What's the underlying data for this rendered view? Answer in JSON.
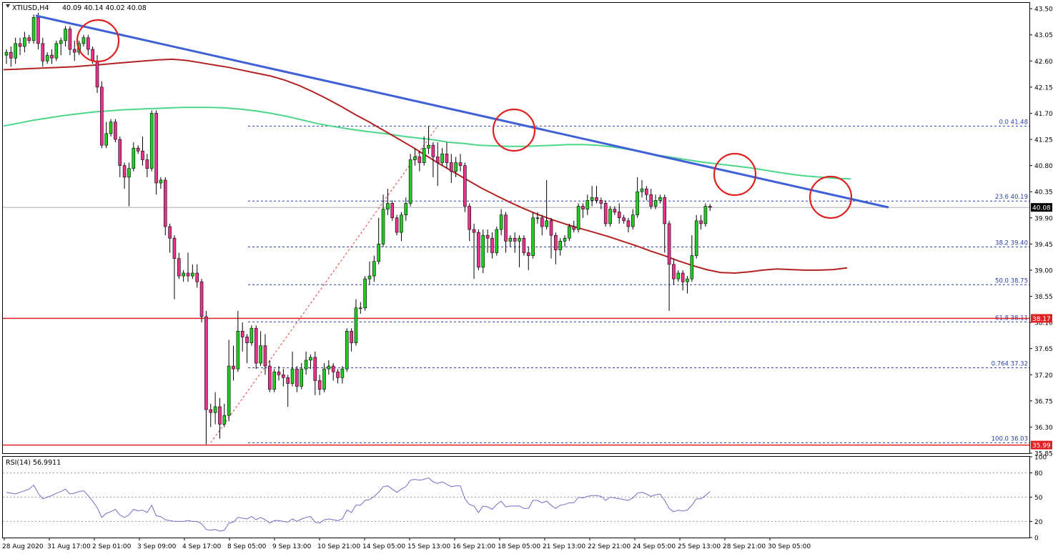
{
  "header": {
    "symbol": "XTIUSD,H4",
    "ohlc": "40.09 40.14 40.02 40.08"
  },
  "rsi_header": "RSI(14) 56.9911",
  "current_price_label": "40.08",
  "colors": {
    "bull": "#22cc22",
    "bear": "#e8338a",
    "sma_red": "#b22222",
    "sma_green": "#4cd68a",
    "trendline": "#4060d8",
    "horizontal": "#e02020",
    "circle": "#e02020",
    "fib": "#2a3fb0",
    "rsi_line": "#7b68c8"
  },
  "chart_data": {
    "type": "candlestick",
    "price_ylim": [
      35.85,
      43.6
    ],
    "y_ticks": [
      "43.50",
      "43.05",
      "42.60",
      "42.15",
      "41.70",
      "41.25",
      "40.80",
      "40.35",
      "39.90",
      "39.45",
      "39.00",
      "38.55",
      "38.10",
      "37.65",
      "37.20",
      "36.75",
      "36.30",
      "35.85"
    ],
    "x_ticks": [
      "28 Aug 2020",
      "31 Aug 17:00",
      "2 Sep 01:00",
      "3 Sep 09:00",
      "4 Sep 17:00",
      "8 Sep 05:00",
      "9 Sep 13:00",
      "10 Sep 21:00",
      "14 Sep 05:00",
      "15 Sep 13:00",
      "16 Sep 21:00",
      "18 Sep 05:00",
      "21 Sep 13:00",
      "22 Sep 21:00",
      "24 Sep 05:00",
      "25 Sep 13:00",
      "28 Sep 21:00",
      "30 Sep 05:00"
    ],
    "candles": [
      [
        42.7,
        42.75,
        42.55,
        42.8
      ],
      [
        42.75,
        42.65,
        42.5,
        42.85
      ],
      [
        42.65,
        42.9,
        42.55,
        43.0
      ],
      [
        42.9,
        42.85,
        42.7,
        43.0
      ],
      [
        42.85,
        43.0,
        42.75,
        43.1
      ],
      [
        43.0,
        42.95,
        42.9,
        43.05
      ],
      [
        42.95,
        43.35,
        42.9,
        43.4
      ],
      [
        43.35,
        42.9,
        42.8,
        43.45
      ],
      [
        42.9,
        42.6,
        42.5,
        43.0
      ],
      [
        42.6,
        42.7,
        42.55,
        42.75
      ],
      [
        42.7,
        42.65,
        42.55,
        42.8
      ],
      [
        42.65,
        42.9,
        42.6,
        42.95
      ],
      [
        42.9,
        42.95,
        42.7,
        43.0
      ],
      [
        42.95,
        43.15,
        42.85,
        43.2
      ],
      [
        43.15,
        42.8,
        42.7,
        43.2
      ],
      [
        42.8,
        42.75,
        42.6,
        42.95
      ],
      [
        42.75,
        42.9,
        42.7,
        42.95
      ],
      [
        42.9,
        43.0,
        42.85,
        43.05
      ],
      [
        43.0,
        42.8,
        42.7,
        43.05
      ],
      [
        42.8,
        42.6,
        42.55,
        42.85
      ],
      [
        42.6,
        42.15,
        42.05,
        42.7
      ],
      [
        42.15,
        41.15,
        41.1,
        42.25
      ],
      [
        41.15,
        41.35,
        41.1,
        41.55
      ],
      [
        41.35,
        41.55,
        41.3,
        41.6
      ],
      [
        41.55,
        41.25,
        41.2,
        41.6
      ],
      [
        41.25,
        40.8,
        40.6,
        41.3
      ],
      [
        40.8,
        40.6,
        40.4,
        40.85
      ],
      [
        40.6,
        40.75,
        40.1,
        40.85
      ],
      [
        40.75,
        41.1,
        40.7,
        41.2
      ],
      [
        41.1,
        41.05,
        41.0,
        41.15
      ],
      [
        41.05,
        40.9,
        40.8,
        41.3
      ],
      [
        40.9,
        40.75,
        40.6,
        41.0
      ],
      [
        40.75,
        41.7,
        40.7,
        41.75
      ],
      [
        41.7,
        40.5,
        40.3,
        41.75
      ],
      [
        40.5,
        40.55,
        40.4,
        40.6
      ],
      [
        40.55,
        39.75,
        39.6,
        40.6
      ],
      [
        39.75,
        39.55,
        39.3,
        39.8
      ],
      [
        39.55,
        39.2,
        38.5,
        39.6
      ],
      [
        39.2,
        38.9,
        38.85,
        39.3
      ],
      [
        38.9,
        38.95,
        38.8,
        39.0
      ],
      [
        38.95,
        38.9,
        38.8,
        39.3
      ],
      [
        38.9,
        38.95,
        38.85,
        39.1
      ],
      [
        38.95,
        38.8,
        38.7,
        39.1
      ],
      [
        38.8,
        38.2,
        38.1,
        38.85
      ],
      [
        38.2,
        36.6,
        36.0,
        38.3
      ],
      [
        36.6,
        36.55,
        36.3,
        36.7
      ],
      [
        36.55,
        36.65,
        36.35,
        36.9
      ],
      [
        36.65,
        36.35,
        36.1,
        36.8
      ],
      [
        36.35,
        36.5,
        36.3,
        36.7
      ],
      [
        36.5,
        37.35,
        36.4,
        37.8
      ],
      [
        37.35,
        37.3,
        37.1,
        37.7
      ],
      [
        37.3,
        37.95,
        37.25,
        38.3
      ],
      [
        37.95,
        37.85,
        37.6,
        38.1
      ],
      [
        37.85,
        37.75,
        37.4,
        37.9
      ],
      [
        37.75,
        38.0,
        37.7,
        38.05
      ],
      [
        38.0,
        37.4,
        37.3,
        38.05
      ],
      [
        37.4,
        37.7,
        37.35,
        37.95
      ],
      [
        37.7,
        37.35,
        37.2,
        37.9
      ],
      [
        37.35,
        36.95,
        36.9,
        37.45
      ],
      [
        36.95,
        37.25,
        36.9,
        37.3
      ],
      [
        37.25,
        37.2,
        37.1,
        37.35
      ],
      [
        37.2,
        37.15,
        37.0,
        37.3
      ],
      [
        37.15,
        37.05,
        36.65,
        37.2
      ],
      [
        37.05,
        37.3,
        37.0,
        37.6
      ],
      [
        37.3,
        37.0,
        36.9,
        37.35
      ],
      [
        37.0,
        37.3,
        36.95,
        37.4
      ],
      [
        37.3,
        37.45,
        37.2,
        37.6
      ],
      [
        37.45,
        37.5,
        37.3,
        37.55
      ],
      [
        37.5,
        37.1,
        36.85,
        37.6
      ],
      [
        37.1,
        36.95,
        36.85,
        37.2
      ],
      [
        36.95,
        37.3,
        36.9,
        37.4
      ],
      [
        37.3,
        37.35,
        37.2,
        37.45
      ],
      [
        37.35,
        37.25,
        37.1,
        37.4
      ],
      [
        37.25,
        37.15,
        37.05,
        37.3
      ],
      [
        37.15,
        37.3,
        37.05,
        37.35
      ],
      [
        37.3,
        37.95,
        37.25,
        38.0
      ],
      [
        37.95,
        37.75,
        37.6,
        38.0
      ],
      [
        37.75,
        38.35,
        37.7,
        38.5
      ],
      [
        38.35,
        38.35,
        38.25,
        38.45
      ],
      [
        38.35,
        38.85,
        38.3,
        38.9
      ],
      [
        38.85,
        38.9,
        38.75,
        39.15
      ],
      [
        38.9,
        39.15,
        38.8,
        39.25
      ],
      [
        39.15,
        39.45,
        39.1,
        39.9
      ],
      [
        39.45,
        40.05,
        39.4,
        40.3
      ],
      [
        40.05,
        40.15,
        39.95,
        40.4
      ],
      [
        40.15,
        39.9,
        39.85,
        40.2
      ],
      [
        39.9,
        39.65,
        39.6,
        39.95
      ],
      [
        39.65,
        39.95,
        39.5,
        40.0
      ],
      [
        39.95,
        40.15,
        39.85,
        40.25
      ],
      [
        40.15,
        40.9,
        40.1,
        41.0
      ],
      [
        40.9,
        40.95,
        40.8,
        41.1
      ],
      [
        40.95,
        40.85,
        40.7,
        41.05
      ],
      [
        40.85,
        41.1,
        40.8,
        41.3
      ],
      [
        41.1,
        41.15,
        41.0,
        41.48
      ],
      [
        41.15,
        40.95,
        40.6,
        41.2
      ],
      [
        40.95,
        40.85,
        40.45,
        41.2
      ],
      [
        40.85,
        41.0,
        40.8,
        41.1
      ],
      [
        41.0,
        40.85,
        40.75,
        41.2
      ],
      [
        40.85,
        40.7,
        40.5,
        41.0
      ],
      [
        40.7,
        40.85,
        40.6,
        40.95
      ],
      [
        40.85,
        40.8,
        40.7,
        41.0
      ],
      [
        40.8,
        40.1,
        40.0,
        40.85
      ],
      [
        40.1,
        39.7,
        39.5,
        40.15
      ],
      [
        39.7,
        39.65,
        38.85,
        39.8
      ],
      [
        39.65,
        39.05,
        39.0,
        39.7
      ],
      [
        39.05,
        39.6,
        38.95,
        39.7
      ],
      [
        39.6,
        39.55,
        39.3,
        39.7
      ],
      [
        39.55,
        39.3,
        39.2,
        39.65
      ],
      [
        39.3,
        39.7,
        39.25,
        39.75
      ],
      [
        39.7,
        39.95,
        39.6,
        40.05
      ],
      [
        39.95,
        39.5,
        39.3,
        40.0
      ],
      [
        39.5,
        39.55,
        39.4,
        39.6
      ],
      [
        39.55,
        39.5,
        39.3,
        39.65
      ],
      [
        39.5,
        39.55,
        39.05,
        39.6
      ],
      [
        39.55,
        39.3,
        39.25,
        39.6
      ],
      [
        39.3,
        39.25,
        39.0,
        39.4
      ],
      [
        39.25,
        39.9,
        39.2,
        40.0
      ],
      [
        39.9,
        39.9,
        39.8,
        40.0
      ],
      [
        39.9,
        39.75,
        39.6,
        39.95
      ],
      [
        39.75,
        39.85,
        39.7,
        40.55
      ],
      [
        39.85,
        39.6,
        39.2,
        39.9
      ],
      [
        39.6,
        39.35,
        39.1,
        39.65
      ],
      [
        39.35,
        39.5,
        39.25,
        39.55
      ],
      [
        39.5,
        39.55,
        39.4,
        39.6
      ],
      [
        39.55,
        39.75,
        39.5,
        39.8
      ],
      [
        39.75,
        39.7,
        39.65,
        39.85
      ],
      [
        39.7,
        40.1,
        39.65,
        40.15
      ],
      [
        40.1,
        40.05,
        39.9,
        40.15
      ],
      [
        40.05,
        40.2,
        39.95,
        40.3
      ],
      [
        40.2,
        40.25,
        40.1,
        40.45
      ],
      [
        40.25,
        40.2,
        40.15,
        40.45
      ],
      [
        40.2,
        40.15,
        40.05,
        40.25
      ],
      [
        40.15,
        39.8,
        39.75,
        40.2
      ],
      [
        39.8,
        40.05,
        39.75,
        40.1
      ],
      [
        40.05,
        40.0,
        39.95,
        40.1
      ],
      [
        40.0,
        39.9,
        39.8,
        40.15
      ],
      [
        39.9,
        39.85,
        39.8,
        39.95
      ],
      [
        39.85,
        39.75,
        39.65,
        39.9
      ],
      [
        39.75,
        39.95,
        39.7,
        40.05
      ],
      [
        39.95,
        40.35,
        39.9,
        40.6
      ],
      [
        40.35,
        40.4,
        40.25,
        40.55
      ],
      [
        40.4,
        40.3,
        40.2,
        40.45
      ],
      [
        40.3,
        40.1,
        40.05,
        40.4
      ],
      [
        40.1,
        40.2,
        40.05,
        40.3
      ],
      [
        40.2,
        40.25,
        40.15,
        40.3
      ],
      [
        40.25,
        39.8,
        39.3,
        40.3
      ],
      [
        39.8,
        39.1,
        38.3,
        39.85
      ],
      [
        39.1,
        38.85,
        38.75,
        39.2
      ],
      [
        38.85,
        38.95,
        38.8,
        39.0
      ],
      [
        38.95,
        38.8,
        38.65,
        39.0
      ],
      [
        38.8,
        38.85,
        38.6,
        38.9
      ],
      [
        38.85,
        39.25,
        38.8,
        39.6
      ],
      [
        39.25,
        39.85,
        39.2,
        39.95
      ],
      [
        39.85,
        39.8,
        39.7,
        39.95
      ],
      [
        39.8,
        40.1,
        39.75,
        40.15
      ],
      [
        40.1,
        40.08,
        40.02,
        40.14
      ]
    ],
    "sma_red": [
      42.45,
      42.46,
      42.47,
      42.48,
      42.49,
      42.5,
      42.52,
      42.54,
      42.56,
      42.58,
      42.6,
      42.62,
      42.63,
      42.61,
      42.57,
      42.53,
      42.49,
      42.44,
      42.39,
      42.34,
      42.27,
      42.18,
      42.07,
      41.95,
      41.82,
      41.68,
      41.55,
      41.41,
      41.27,
      41.13,
      40.98,
      40.83,
      40.69,
      40.55,
      40.41,
      40.29,
      40.17,
      40.06,
      39.96,
      39.87,
      39.79,
      39.72,
      39.65,
      39.58,
      39.5,
      39.42,
      39.33,
      39.25,
      39.16,
      39.08,
      39.01,
      38.96,
      38.95,
      38.97,
      39.0,
      39.02,
      39.01,
      39.0,
      39.0,
      39.01,
      39.04
    ],
    "sma_green": [
      41.48,
      41.53,
      41.58,
      41.62,
      41.66,
      41.69,
      41.72,
      41.74,
      41.76,
      41.77,
      41.78,
      41.79,
      41.8,
      41.8,
      41.8,
      41.79,
      41.77,
      41.74,
      41.7,
      41.65,
      41.59,
      41.53,
      41.48,
      41.44,
      41.4,
      41.37,
      41.34,
      41.3,
      41.27,
      41.24,
      41.2,
      41.18,
      41.15,
      41.14,
      41.13,
      41.13,
      41.14,
      41.15,
      41.16,
      41.16,
      41.15,
      41.12,
      41.08,
      41.03,
      40.98,
      40.94,
      40.9,
      40.86,
      40.83,
      40.8,
      40.77,
      40.73,
      40.69,
      40.65,
      40.62,
      40.6,
      40.58,
      40.57
    ],
    "rsi": {
      "ylim": [
        0,
        100
      ],
      "ticks": [
        "100",
        "80",
        "50",
        "20",
        "0"
      ],
      "levels": [
        80,
        50,
        20
      ],
      "values": [
        56,
        55,
        54,
        56,
        58,
        60,
        65,
        55,
        48,
        50,
        52,
        55,
        57,
        60,
        54,
        55,
        57,
        58,
        52,
        45,
        37,
        25,
        30,
        32,
        35,
        28,
        25,
        28,
        35,
        33,
        34,
        31,
        40,
        27,
        26,
        22,
        21,
        20,
        20,
        20,
        21,
        20,
        20,
        17,
        10,
        9,
        10,
        8,
        9,
        18,
        19,
        25,
        24,
        23,
        26,
        22,
        25,
        22,
        18,
        21,
        21,
        20,
        19,
        23,
        20,
        23,
        25,
        26,
        19,
        18,
        22,
        23,
        22,
        21,
        23,
        34,
        31,
        40,
        40,
        46,
        47,
        51,
        56,
        63,
        64,
        60,
        56,
        60,
        63,
        71,
        72,
        71,
        72,
        74,
        69,
        67,
        69,
        66,
        63,
        64,
        64,
        48,
        41,
        39,
        31,
        39,
        38,
        35,
        41,
        45,
        38,
        39,
        39,
        39,
        36,
        36,
        46,
        46,
        43,
        45,
        40,
        36,
        40,
        41,
        43,
        43,
        50,
        49,
        51,
        52,
        52,
        51,
        46,
        50,
        49,
        48,
        47,
        46,
        49,
        55,
        56,
        54,
        51,
        53,
        54,
        46,
        36,
        32,
        34,
        33,
        34,
        40,
        48,
        48,
        52,
        57
      ]
    },
    "fib_levels": [
      {
        "label": "0.0 41.48",
        "value": 41.48
      },
      {
        "label": "23.6 40.19",
        "value": 40.19
      },
      {
        "label": "38.2 39.40",
        "value": 39.4
      },
      {
        "label": "50.0 38.75",
        "value": 38.75
      },
      {
        "label": "61.8 38.11",
        "value": 38.11
      },
      {
        "label": "0.764 37.32",
        "value": 37.32
      },
      {
        "label": "100.0 36.03",
        "value": 36.03
      }
    ],
    "horizontal_levels": [
      {
        "label": "38.17",
        "value": 38.17
      },
      {
        "label": "35.99",
        "value": 35.99
      }
    ],
    "current_price": 40.08,
    "trendline": {
      "start": [
        8,
        43.38
      ],
      "end": [
        161,
        40.08
      ]
    },
    "diagonal_fib": {
      "start": [
        45,
        36.03
      ],
      "end": [
        95,
        41.48
      ]
    },
    "circles": [
      {
        "candle_index": 17,
        "price": 43.0
      },
      {
        "candle_index": 97,
        "price": 41.5
      },
      {
        "candle_index": 139,
        "price": 40.75
      },
      {
        "candle_index": 162,
        "price": 40.35
      }
    ]
  }
}
